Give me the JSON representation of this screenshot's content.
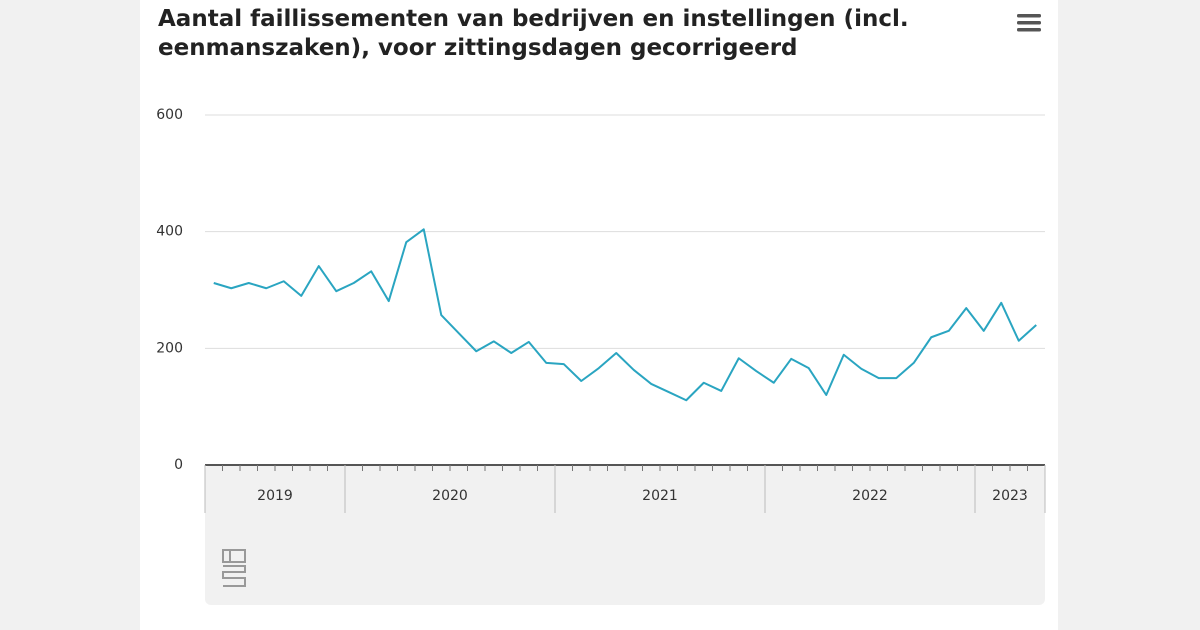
{
  "chart_data": {
    "type": "line",
    "title": [
      "Aantal faillissementen van bedrijven en instellingen (incl.",
      "eenmanszaken), voor zittingsdagen gecorrigeerd"
    ],
    "categories": [
      null,
      null,
      null,
      null,
      null,
      null,
      null,
      null,
      null,
      null,
      null,
      null,
      null,
      null,
      null,
      null,
      null,
      null,
      null,
      null,
      null,
      null,
      null,
      null,
      null,
      null,
      null,
      null,
      null,
      null,
      null,
      null,
      null,
      null,
      null,
      null,
      null,
      null,
      null,
      null,
      null,
      null,
      null,
      null,
      null,
      null,
      null,
      null
    ],
    "x_groups": [
      {
        "label": "2019",
        "count": 8
      },
      {
        "label": "2020",
        "count": 12
      },
      {
        "label": "2021",
        "count": 12
      },
      {
        "label": "2022",
        "count": 12
      },
      {
        "label": "2023",
        "count": 4
      }
    ],
    "series": [
      {
        "color": "#2aa5c1",
        "values": [
          312,
          303,
          312,
          303,
          315,
          290,
          341,
          298,
          312,
          332,
          281,
          382,
          404,
          257,
          226,
          195,
          212,
          192,
          211,
          175,
          173,
          144,
          166,
          192,
          163,
          139,
          125,
          111,
          141,
          127,
          183,
          161,
          141,
          182,
          166,
          120,
          189,
          165,
          149,
          149,
          175,
          219,
          230,
          269,
          230,
          278,
          213,
          240
        ]
      }
    ],
    "ylim": [
      0,
      600
    ],
    "yticks": [
      0,
      200,
      400,
      600
    ],
    "grid": true
  }
}
